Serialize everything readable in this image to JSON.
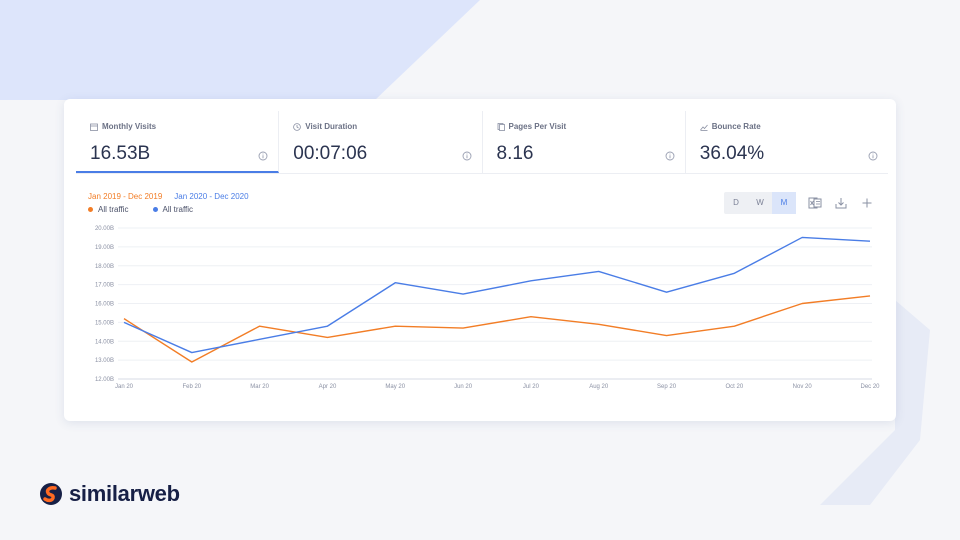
{
  "metrics": [
    {
      "label": "Monthly Visits",
      "value": "16.53B",
      "icon": "calendar-icon"
    },
    {
      "label": "Visit Duration",
      "value": "00:07:06",
      "icon": "clock-icon"
    },
    {
      "label": "Pages Per Visit",
      "value": "8.16",
      "icon": "pages-icon"
    },
    {
      "label": "Bounce Rate",
      "value": "36.04%",
      "icon": "trend-icon"
    }
  ],
  "legend": {
    "range1": "Jan 2019 - Dec 2019",
    "range2": "Jan 2020 - Dec 2020",
    "item1": "All traffic",
    "item2": "All traffic"
  },
  "granularity": {
    "options": [
      "D",
      "W",
      "M"
    ],
    "selected": "M"
  },
  "colors": {
    "series_2019": "#f27d26",
    "series_2020": "#4a7de6",
    "accent": "#4a7de6"
  },
  "brand": {
    "name": "similarweb"
  },
  "chart_data": {
    "type": "line",
    "categories": [
      "Jan 20",
      "Feb 20",
      "Mar 20",
      "Apr 20",
      "May 20",
      "Jun 20",
      "Jul 20",
      "Aug 20",
      "Sep 20",
      "Oct 20",
      "Nov 20",
      "Dec 20"
    ],
    "y_ticks": [
      "12.00B",
      "13.00B",
      "14.00B",
      "15.00B",
      "16.00B",
      "17.00B",
      "18.00B",
      "19.00B",
      "20.00B"
    ],
    "ylim": [
      12,
      20
    ],
    "grid": true,
    "series": [
      {
        "name": "Jan 2019 - Dec 2019",
        "color": "#f27d26",
        "values": [
          15.2,
          12.9,
          14.8,
          14.2,
          14.8,
          14.7,
          15.3,
          14.9,
          14.3,
          14.8,
          16.0,
          16.4
        ]
      },
      {
        "name": "Jan 2020 - Dec 2020",
        "color": "#4a7de6",
        "values": [
          15.0,
          13.4,
          14.1,
          14.8,
          17.1,
          16.5,
          17.2,
          17.7,
          16.6,
          17.6,
          19.5,
          19.3
        ]
      }
    ]
  }
}
